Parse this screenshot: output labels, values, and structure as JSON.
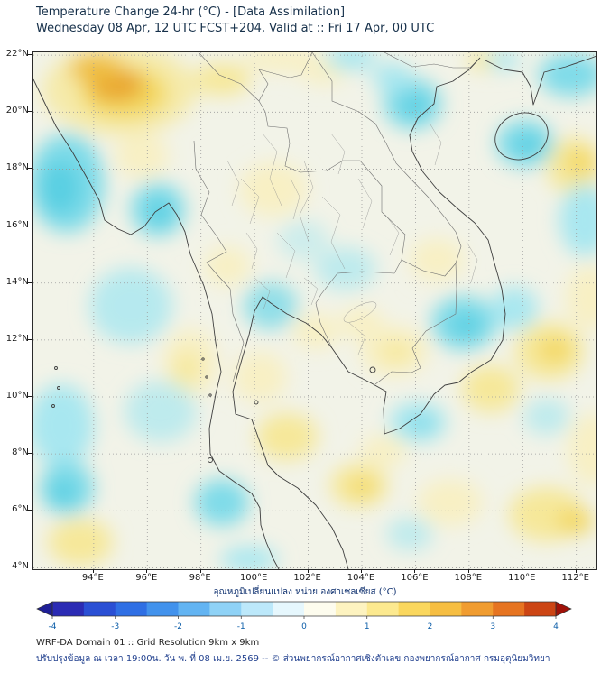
{
  "header": {
    "title": "Temperature Change 24-hr (°C) - [Data Assimilation]",
    "subtitle": "Wednesday 08 Apr, 12 UTC FCST+204, Valid at :: Fri 17 Apr, 00 UTC"
  },
  "map": {
    "lat_tick_labels": [
      "22°N",
      "20°N",
      "18°N",
      "16°N",
      "14°N",
      "12°N",
      "10°N",
      "8°N",
      "6°N",
      "4°N"
    ],
    "lat_tick_values": [
      22,
      20,
      18,
      16,
      14,
      12,
      10,
      8,
      6,
      4
    ],
    "lon_tick_labels": [
      "94°E",
      "96°E",
      "98°E",
      "100°E",
      "102°E",
      "104°E",
      "106°E",
      "108°E",
      "110°E",
      "112°E"
    ],
    "lon_tick_values": [
      94,
      96,
      98,
      100,
      102,
      104,
      106,
      108,
      110,
      112
    ],
    "lon_range": [
      91.75,
      112.75
    ],
    "lat_range": [
      3.95,
      22.1
    ],
    "grid": "dotted"
  },
  "colorbar": {
    "label": "อุณหภูมิเปลี่ยนแปลง หน่วย องศาเซลเซียส (°C)",
    "min": -4,
    "max": 4,
    "tick_labels": [
      "-4",
      "-3",
      "-2",
      "-1",
      "0",
      "1",
      "2",
      "3",
      "4"
    ],
    "tick_values": [
      -4,
      -3,
      -2,
      -1,
      0,
      1,
      2,
      3,
      4
    ],
    "segment_colors": [
      "#2b2bb4",
      "#2a4fd4",
      "#2f6fe4",
      "#4292ec",
      "#63b4f2",
      "#8fd2f6",
      "#bce8fa",
      "#e6f7fd",
      "#fdfcee",
      "#fdf3c0",
      "#fce98f",
      "#fad75e",
      "#f6be42",
      "#f09c30",
      "#e67421",
      "#cc4514"
    ],
    "left_arrow_color": "#1f1f96",
    "right_arrow_color": "#a01208",
    "tick_text_color": "#0a5ca8"
  },
  "footer": {
    "line1": "WRF-DA Domain 01 :: Grid Resolution 9km x 9km",
    "line2": "ปรับปรุงข้อมูล ณ เวลา 19:00น. วัน พ. ที่ 08 เม.ย. 2569 -- © ส่วนพยากรณ์อากาศเชิงตัวเลข กองพยากรณ์อากาศ กรมอุตุนิยมวิทยา"
  },
  "colors": {
    "title_text": "#16304a",
    "axis_text": "#1a1a1a",
    "footer_thai_text": "#22418f",
    "map_base": "#f2f3e8",
    "cool_strong": "#58cfe2",
    "warm_strong": "#e9a42e"
  }
}
